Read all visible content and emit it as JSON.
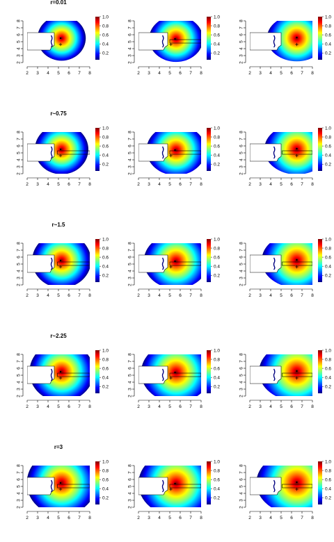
{
  "chart_data": {
    "type": "heatmap",
    "layout": {
      "rows": 5,
      "cols": 3
    },
    "row_titles": [
      "r=0.01",
      "r~0.75",
      "r~1.5",
      "r~2.25",
      "r=3"
    ],
    "r_values": [
      0.01,
      0.75,
      1.5,
      2.25,
      3
    ],
    "x_ticks": [
      2,
      3,
      4,
      5,
      6,
      7,
      8
    ],
    "y_ticks": [
      2,
      3,
      4,
      5,
      6,
      7,
      8
    ],
    "xlim": [
      2,
      8
    ],
    "ylim": [
      2,
      8
    ],
    "colorbar": {
      "ticks": [
        "0.2",
        "0.4",
        "0.6",
        "0.8",
        "1.0"
      ],
      "range": [
        0.05,
        1.0
      ],
      "colors": [
        "#00007f",
        "#0000ff",
        "#007fff",
        "#00ffff",
        "#7fff7f",
        "#ffff00",
        "#ff7f00",
        "#ff0000",
        "#7f0000"
      ]
    },
    "points": [
      {
        "x": 5.2,
        "y": 5.5,
        "marker": "dot"
      },
      {
        "x": 5.2,
        "y": 4.6,
        "marker": "plus"
      }
    ],
    "columns": [
      {
        "peak": {
          "x": 5.3,
          "y": 5.5
        },
        "points": [
          {
            "x": 5.2,
            "y": 5.5,
            "marker": "dot"
          },
          {
            "x": 5.2,
            "y": 4.6,
            "marker": "plus"
          }
        ]
      },
      {
        "peak": {
          "x": 5.6,
          "y": 5.4
        },
        "points": [
          {
            "x": 5.5,
            "y": 5.4,
            "marker": "dot"
          },
          {
            "x": 5.1,
            "y": 4.6,
            "marker": "plus"
          }
        ]
      },
      {
        "peak": {
          "x": 6.5,
          "y": 5.5
        },
        "points": [
          {
            "x": 6.5,
            "y": 5.6,
            "marker": "dot"
          },
          {
            "x": 6.5,
            "y": 4.6,
            "marker": "plus"
          }
        ]
      }
    ]
  }
}
